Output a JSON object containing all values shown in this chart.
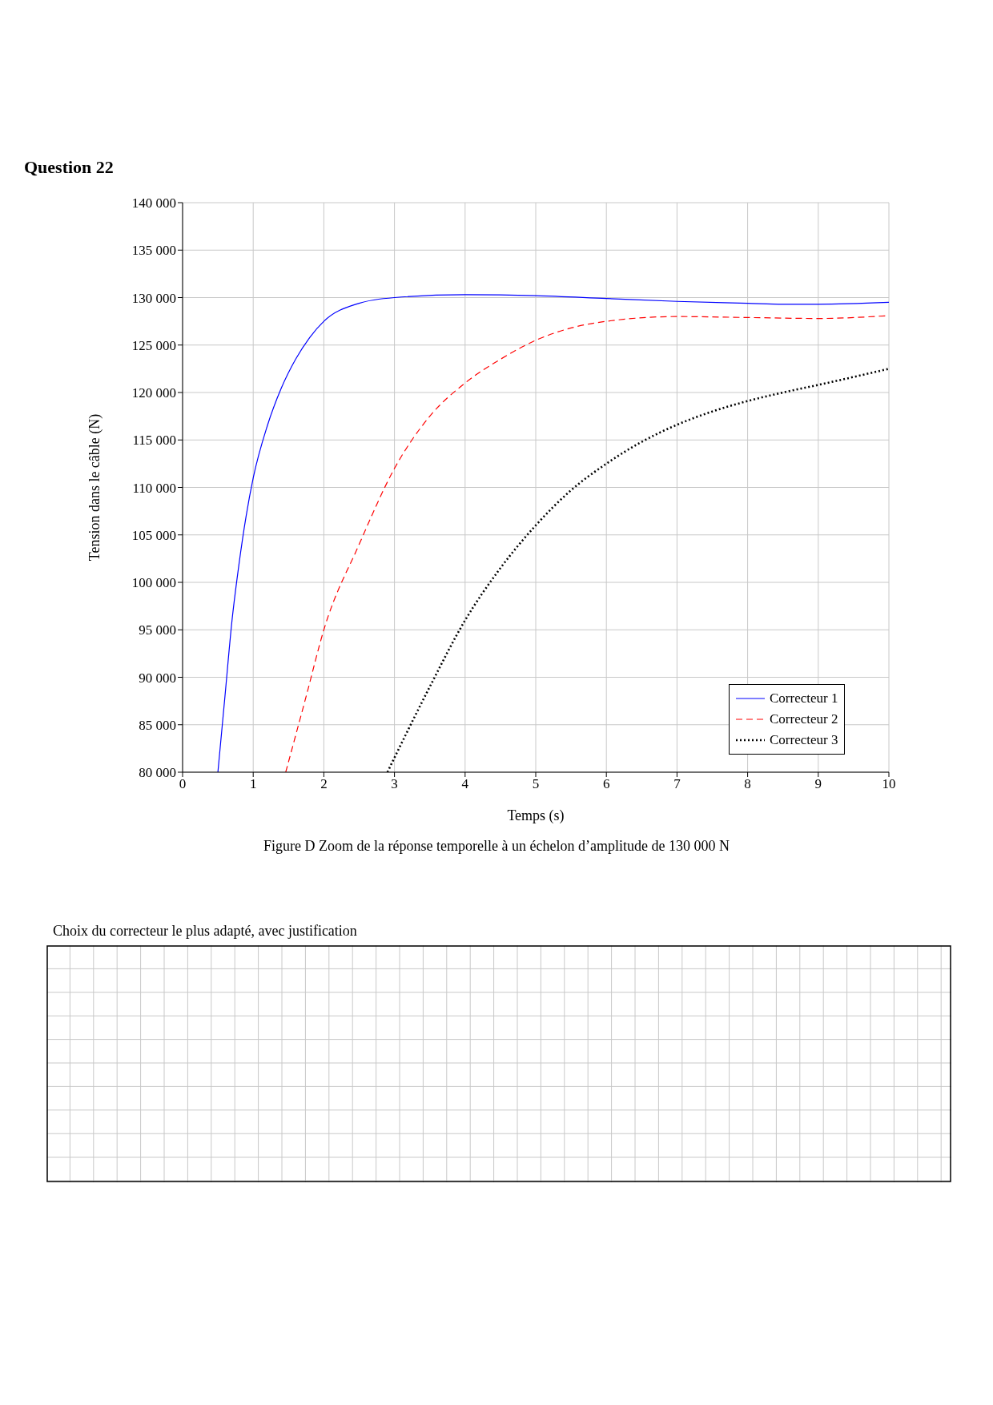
{
  "chart_data": {
    "type": "line",
    "title": "Question 22",
    "xlabel": "Temps (s)",
    "ylabel": "Tension dans le câble (N)",
    "annotations": [
      "Figure D   Zoom de la réponse temporelle à un échelon d’amplitude de 130 000 N",
      "Choix du correcteur le plus adapté, avec justification"
    ],
    "xlim": [
      0,
      10
    ],
    "xticks": [
      0,
      1,
      2,
      3,
      4,
      5,
      6,
      7,
      8,
      9,
      10
    ],
    "ylim": [
      80000,
      140000
    ],
    "yticks": [
      {
        "value": 80000,
        "label": "80 000"
      },
      {
        "value": 85000,
        "label": "85 000"
      },
      {
        "value": 90000,
        "label": "90 000"
      },
      {
        "value": 95000,
        "label": "95 000"
      },
      {
        "value": 100000,
        "label": "100 000"
      },
      {
        "value": 105000,
        "label": "105 000"
      },
      {
        "value": 110000,
        "label": "110 000"
      },
      {
        "value": 115000,
        "label": "115 000"
      },
      {
        "value": 120000,
        "label": "120 000"
      },
      {
        "value": 125000,
        "label": "125 000"
      },
      {
        "value": 130000,
        "label": "130 000"
      },
      {
        "value": 135000,
        "label": "135 000"
      },
      {
        "value": 140000,
        "label": "140 000"
      }
    ],
    "grid": true,
    "legend": "bottom right",
    "marker": "none",
    "series": [
      {
        "name": "Correcteur 1",
        "color": "#0000ff",
        "line_style": "solid",
        "x": [
          0.5,
          0.6,
          0.7,
          0.8,
          0.9,
          1.0,
          1.2,
          1.4,
          1.6,
          1.8,
          2.0,
          2.5,
          3,
          4,
          5,
          6,
          7,
          8,
          8.5,
          9,
          10
        ],
        "values": [
          80000,
          88000,
          96000,
          102000,
          107000,
          111000,
          116500,
          120500,
          123500,
          125800,
          127500,
          129400,
          130000,
          130300,
          130200,
          129900,
          129600,
          129400,
          129300,
          129300,
          129500
        ]
      },
      {
        "name": "Correcteur 2",
        "color": "#ff0000",
        "line_style": "dashed",
        "x": [
          1.46,
          1.75,
          2,
          2.5,
          3,
          3.5,
          4,
          4.5,
          5,
          5.5,
          6,
          7,
          8,
          9,
          10
        ],
        "values": [
          80000,
          88000,
          95000,
          104000,
          112000,
          117500,
          121000,
          123500,
          125500,
          126800,
          127500,
          128000,
          127900,
          127800,
          128100
        ]
      },
      {
        "name": "Correcteur 3",
        "color": "#000000",
        "line_style": "dotted",
        "x": [
          2.9,
          3.5,
          4,
          4.5,
          5,
          5.5,
          6,
          6.5,
          7,
          7.5,
          8,
          8.5,
          9,
          10
        ],
        "values": [
          80000,
          89000,
          96000,
          101500,
          106000,
          109700,
          112500,
          114800,
          116600,
          118000,
          119100,
          120000,
          120800,
          122500
        ]
      }
    ]
  }
}
